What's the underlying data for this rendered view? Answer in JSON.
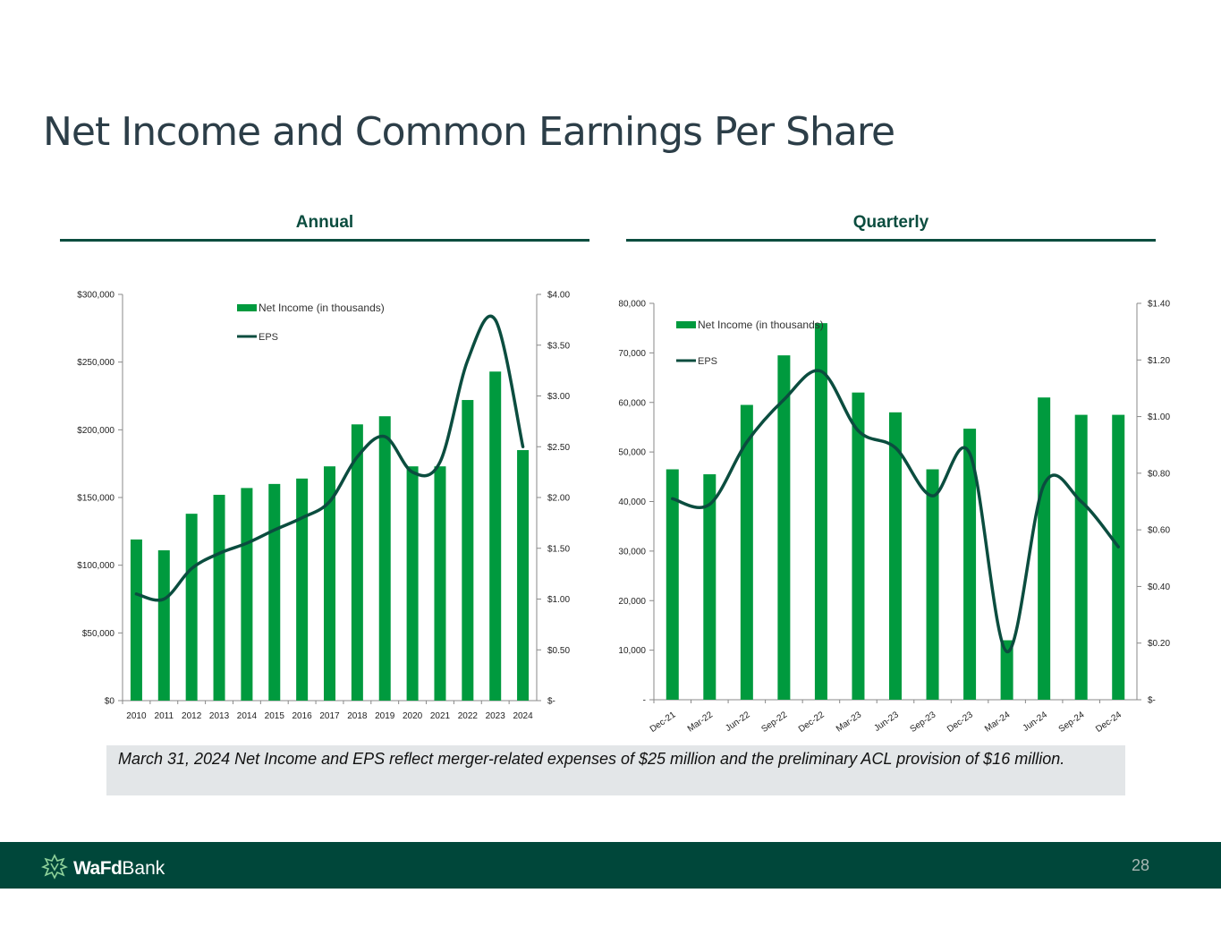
{
  "title": "Net Income and Common Earnings Per Share",
  "sections": {
    "annual": "Annual",
    "quarterly": "Quarterly"
  },
  "colors": {
    "bar": "#009a3e",
    "line": "#0b4d3f",
    "rule": "#0b4d3f",
    "footer": "#00473a"
  },
  "note": "March 31, 2024 Net Income and EPS reflect merger-related expenses of $25 million and the preliminary ACL provision of $16 million.",
  "footer": {
    "logo_bold": "WaFd",
    "logo_rest": "Bank",
    "logo_icon": "wafd-leaf-icon",
    "page_number": "28"
  },
  "chart_data": [
    {
      "type": "bar",
      "categories": [
        "2010",
        "2011",
        "2012",
        "2013",
        "2014",
        "2015",
        "2016",
        "2017",
        "2018",
        "2019",
        "2020",
        "2021",
        "2022",
        "2023",
        "2024"
      ],
      "series": [
        {
          "name": "Net Income (in thousands)",
          "type": "bar",
          "axis": "left",
          "values": [
            119000,
            111000,
            138000,
            152000,
            157000,
            160000,
            164000,
            173000,
            204000,
            210000,
            173000,
            173000,
            222000,
            243000,
            185000
          ]
        },
        {
          "name": "EPS",
          "type": "line",
          "axis": "right",
          "values": [
            1.05,
            1.0,
            1.3,
            1.45,
            1.55,
            1.68,
            1.8,
            1.96,
            2.4,
            2.6,
            2.25,
            2.35,
            3.35,
            3.75,
            2.5
          ]
        }
      ],
      "yticks": [
        "$0",
        "$50,000",
        "$100,000",
        "$150,000",
        "$200,000",
        "$250,000",
        "$300,000"
      ],
      "ylim": [
        0,
        300000
      ],
      "y2ticks": [
        "$-",
        "$0.50",
        "$1.00",
        "$1.50",
        "$2.00",
        "$2.50",
        "$3.00",
        "$3.50",
        "$4.00"
      ],
      "y2lim": [
        0,
        4
      ],
      "legend": "top-center",
      "xlabel_rotation": 0
    },
    {
      "type": "bar",
      "categories": [
        "Dec-21",
        "Mar-22",
        "Jun-22",
        "Sep-22",
        "Dec-22",
        "Mar-23",
        "Jun-23",
        "Sep-23",
        "Dec-23",
        "Mar-24",
        "Jun-24",
        "Sep-24",
        "Dec-24"
      ],
      "series": [
        {
          "name": "Net Income (in thousands)",
          "type": "bar",
          "axis": "left",
          "values": [
            46500,
            45500,
            59500,
            69500,
            76000,
            62000,
            58000,
            46500,
            54700,
            12000,
            61000,
            57500,
            57500
          ]
        },
        {
          "name": "EPS",
          "type": "line",
          "axis": "right",
          "values": [
            0.71,
            0.69,
            0.91,
            1.06,
            1.16,
            0.95,
            0.89,
            0.72,
            0.87,
            0.17,
            0.76,
            0.7,
            0.54
          ]
        }
      ],
      "yticks": [
        "-",
        "10,000",
        "20,000",
        "30,000",
        "40,000",
        "50,000",
        "60,000",
        "70,000",
        "80,000"
      ],
      "ylim": [
        0,
        80000
      ],
      "y2ticks": [
        "$-",
        "$0.20",
        "$0.40",
        "$0.60",
        "$0.80",
        "$1.00",
        "$1.20",
        "$1.40"
      ],
      "y2lim": [
        0,
        1.4
      ],
      "legend": "top-left",
      "xlabel_rotation": -35
    }
  ]
}
